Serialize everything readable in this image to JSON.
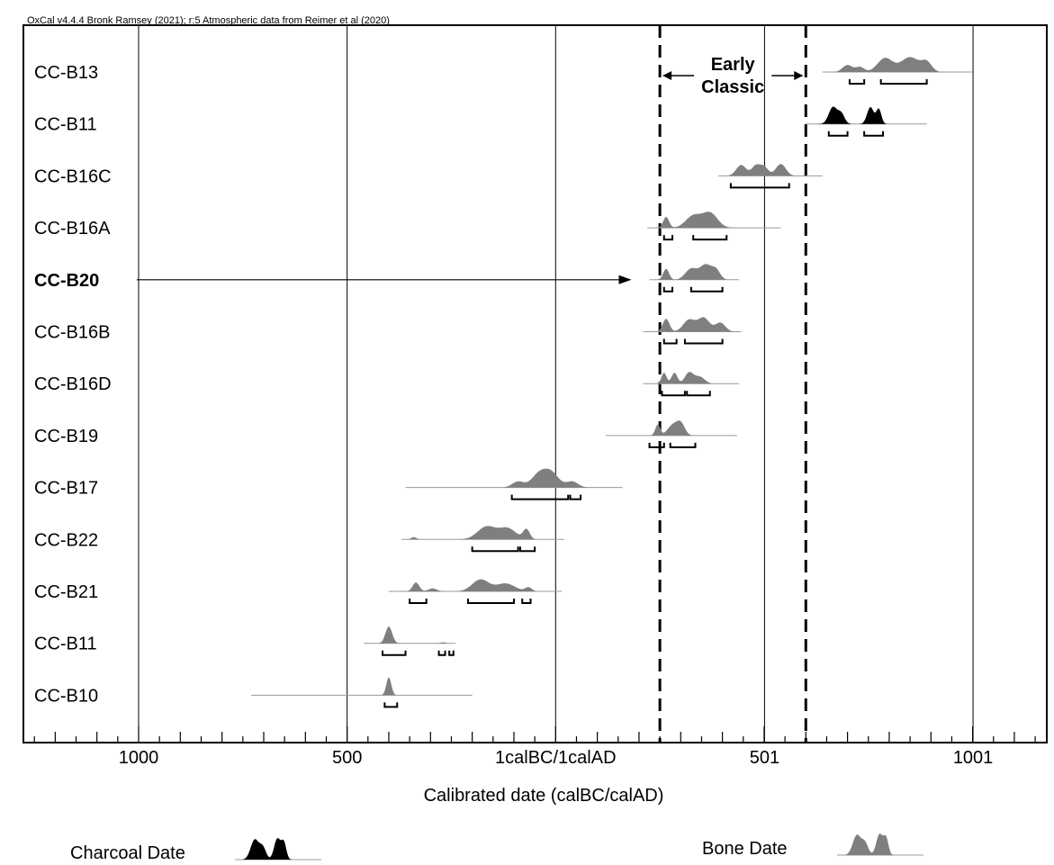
{
  "header": "OxCal v4.4.4 Bronk Ramsey (2021); r:5 Atmospheric data from Reimer et al (2020)",
  "colors": {
    "bone": "#7f7f7f",
    "charcoal": "#000000",
    "axis": "#000000"
  },
  "chart_data": {
    "type": "density-ridge",
    "xlabel": "Calibrated date (calBC/calAD)",
    "xlim": [
      -1290,
      1220
    ],
    "xticks": [
      -1000,
      -500,
      0,
      501,
      1001
    ],
    "xtick_labels": [
      "1000",
      "500",
      "1calBC/1calAD",
      "501",
      "1001"
    ],
    "grid": true,
    "period": {
      "label_line1": "Early",
      "label_line2": "Classic",
      "start": 250,
      "end": 600
    },
    "samples": [
      {
        "label": "CC-B13",
        "material": "bone",
        "bold": false,
        "range": [
          640,
          1000
        ],
        "peaks": [
          [
            700,
            12,
            0.35
          ],
          [
            730,
            10,
            0.25
          ],
          [
            790,
            18,
            0.7
          ],
          [
            850,
            22,
            0.75
          ],
          [
            890,
            12,
            0.45
          ]
        ],
        "hpd": [
          [
            705,
            740
          ],
          [
            780,
            890
          ]
        ]
      },
      {
        "label": "CC-B11",
        "material": "charcoal",
        "bold": false,
        "range": [
          600,
          890
        ],
        "peaks": [
          [
            665,
            10,
            0.85
          ],
          [
            685,
            8,
            0.5
          ],
          [
            755,
            8,
            0.85
          ],
          [
            775,
            6,
            0.75
          ]
        ],
        "hpd": [
          [
            655,
            700
          ],
          [
            740,
            785
          ]
        ]
      },
      {
        "label": "CC-B16C",
        "material": "bone",
        "bold": false,
        "range": [
          390,
          640
        ],
        "peaks": [
          [
            445,
            12,
            0.55
          ],
          [
            480,
            10,
            0.5
          ],
          [
            500,
            10,
            0.45
          ],
          [
            540,
            12,
            0.6
          ]
        ],
        "hpd": [
          [
            420,
            560
          ]
        ]
      },
      {
        "label": "CC-B16A",
        "material": "bone",
        "bold": false,
        "range": [
          220,
          540
        ],
        "peaks": [
          [
            265,
            7,
            0.55
          ],
          [
            330,
            18,
            0.6
          ],
          [
            370,
            18,
            0.75
          ]
        ],
        "hpd": [
          [
            260,
            280
          ],
          [
            330,
            410
          ]
        ]
      },
      {
        "label": "CC-B20",
        "material": "bone",
        "bold": true,
        "range": [
          225,
          440
        ],
        "peaks": [
          [
            265,
            7,
            0.55
          ],
          [
            325,
            14,
            0.55
          ],
          [
            360,
            14,
            0.75
          ],
          [
            385,
            10,
            0.45
          ]
        ],
        "hpd": [
          [
            260,
            280
          ],
          [
            325,
            400
          ]
        ]
      },
      {
        "label": "CC-B16B",
        "material": "bone",
        "bold": false,
        "range": [
          210,
          445
        ],
        "peaks": [
          [
            265,
            8,
            0.65
          ],
          [
            320,
            14,
            0.6
          ],
          [
            355,
            14,
            0.7
          ],
          [
            395,
            12,
            0.45
          ]
        ],
        "hpd": [
          [
            260,
            290
          ],
          [
            310,
            400
          ]
        ]
      },
      {
        "label": "CC-B16D",
        "material": "bone",
        "bold": false,
        "range": [
          210,
          440
        ],
        "peaks": [
          [
            260,
            6,
            0.55
          ],
          [
            285,
            7,
            0.55
          ],
          [
            320,
            10,
            0.55
          ],
          [
            345,
            12,
            0.35
          ]
        ],
        "hpd": [
          [
            255,
            310
          ],
          [
            315,
            370
          ]
        ]
      },
      {
        "label": "CC-B19",
        "material": "bone",
        "bold": false,
        "range": [
          120,
          435
        ],
        "peaks": [
          [
            245,
            6,
            0.55
          ],
          [
            280,
            12,
            0.5
          ],
          [
            300,
            10,
            0.6
          ]
        ],
        "hpd": [
          [
            225,
            260
          ],
          [
            275,
            335
          ]
        ]
      },
      {
        "label": "CC-B17",
        "material": "bone",
        "bold": false,
        "range": [
          -360,
          160
        ],
        "peaks": [
          [
            -90,
            14,
            0.3
          ],
          [
            -40,
            18,
            0.65
          ],
          [
            -10,
            18,
            0.7
          ],
          [
            40,
            14,
            0.3
          ]
        ],
        "hpd": [
          [
            -105,
            30
          ],
          [
            35,
            60
          ]
        ]
      },
      {
        "label": "CC-B22",
        "material": "bone",
        "bold": false,
        "range": [
          -370,
          20
        ],
        "peaks": [
          [
            -340,
            6,
            0.12
          ],
          [
            -165,
            22,
            0.65
          ],
          [
            -115,
            20,
            0.55
          ],
          [
            -70,
            8,
            0.5
          ]
        ],
        "hpd": [
          [
            -200,
            -90
          ],
          [
            -85,
            -50
          ]
        ]
      },
      {
        "label": "CC-B21",
        "material": "bone",
        "bold": false,
        "range": [
          -400,
          15
        ],
        "peaks": [
          [
            -335,
            8,
            0.45
          ],
          [
            -295,
            10,
            0.15
          ],
          [
            -180,
            20,
            0.6
          ],
          [
            -120,
            22,
            0.4
          ],
          [
            -65,
            8,
            0.2
          ]
        ],
        "hpd": [
          [
            -350,
            -310
          ],
          [
            -210,
            -100
          ],
          [
            -80,
            -60
          ]
        ]
      },
      {
        "label": "CC-B11",
        "material": "bone",
        "bold": false,
        "range": [
          -460,
          -240
        ],
        "peaks": [
          [
            -400,
            8,
            0.85
          ],
          [
            -270,
            6,
            0.05
          ]
        ],
        "hpd": [
          [
            -415,
            -360
          ],
          [
            -280,
            -265
          ],
          [
            -255,
            -245
          ]
        ]
      },
      {
        "label": "CC-B10",
        "material": "bone",
        "bold": false,
        "range": [
          -730,
          -200
        ],
        "peaks": [
          [
            -400,
            6,
            0.9
          ]
        ],
        "hpd": [
          [
            -410,
            -380
          ]
        ]
      }
    ],
    "arrow_to": "CC-B20",
    "legend": [
      {
        "label": "Charcoal Date",
        "material": "charcoal"
      },
      {
        "label": "Bone Date",
        "material": "bone"
      }
    ]
  }
}
